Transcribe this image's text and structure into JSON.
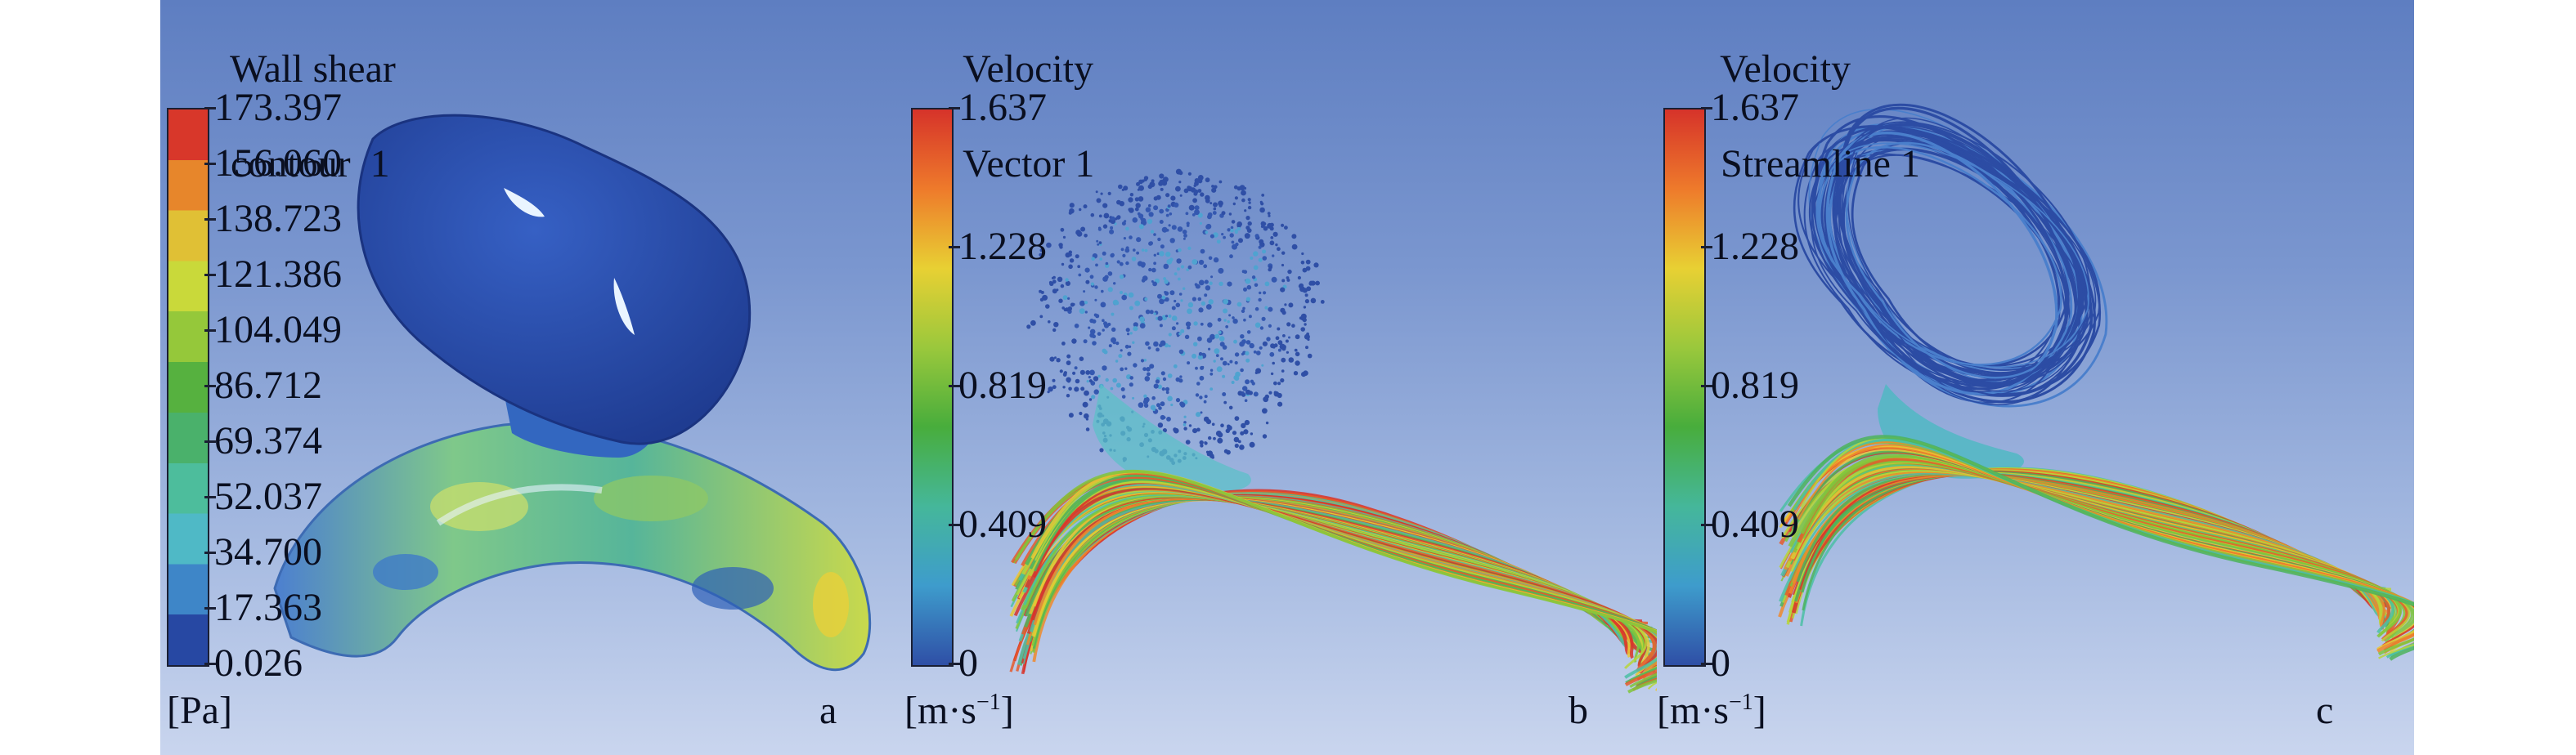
{
  "panels": [
    {
      "letter": "a",
      "title_line1": "Wall shear",
      "title_line2": "contour  1",
      "unit": "[Pa]",
      "ticks": [
        "173.397",
        "156.060",
        "138.723",
        "121.386",
        "104.049",
        "86.712",
        "69.374",
        "52.037",
        "34.700",
        "17.363",
        "0.026"
      ],
      "colorbar_colors": [
        "#d8372a",
        "#e7862b",
        "#e0c035",
        "#c9d93a",
        "#95c83a",
        "#56b13f",
        "#4ab16b",
        "#4dbd9c",
        "#4fb9c6",
        "#3e86c8",
        "#2748a3"
      ]
    },
    {
      "letter": "b",
      "title_line1": "Velocity",
      "title_line2": "Vector 1",
      "unit": "[m·s",
      "unit_sup": "−1",
      "unit_end": "]",
      "ticks": [
        "1.637",
        "1.228",
        "0.819",
        "0.409",
        "0"
      ],
      "colorbar_colors": [
        "#d6332a",
        "#ee7a2b",
        "#e8d033",
        "#9ac83c",
        "#48ad3c",
        "#45b79a",
        "#3e9ccc",
        "#2f4fa6"
      ]
    },
    {
      "letter": "c",
      "title_line1": "Velocity",
      "title_line2": "Streamline 1",
      "unit": "[m·s",
      "unit_sup": "−1",
      "unit_end": "]",
      "ticks": [
        "1.637",
        "1.228",
        "0.819",
        "0.409",
        "0"
      ],
      "colorbar_colors": [
        "#d6332a",
        "#ee7a2b",
        "#e8d033",
        "#9ac83c",
        "#48ad3c",
        "#45b79a",
        "#3e9ccc",
        "#2f4fa6"
      ]
    }
  ]
}
